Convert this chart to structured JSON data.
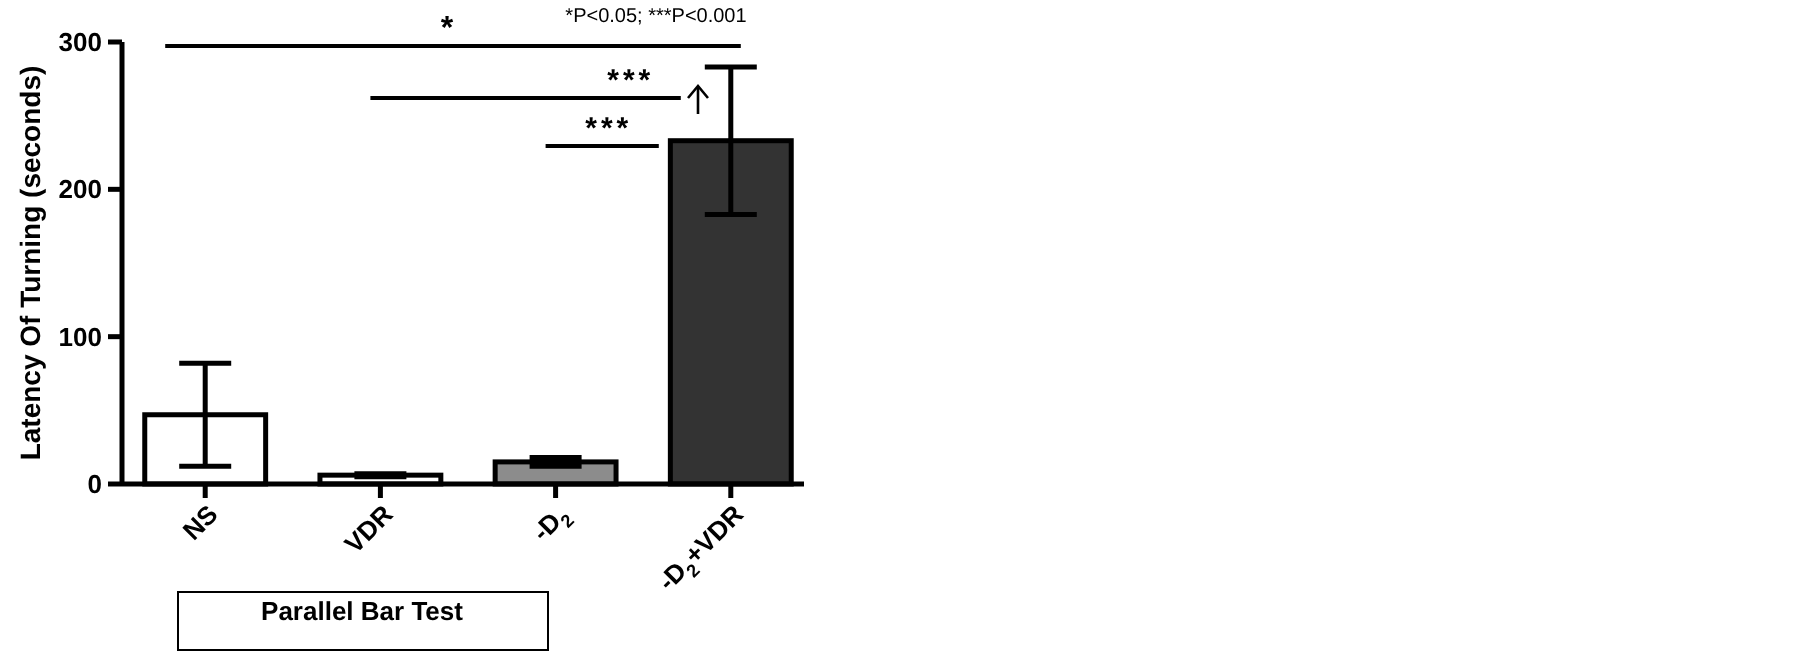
{
  "chart_data": {
    "type": "bar",
    "ylabel": "Latency Of Turning (seconds)",
    "categories": [
      "NS",
      "VDR",
      "-D$_{2}$",
      "-D$_{2}$+VDR"
    ],
    "values": [
      47,
      6,
      15,
      233
    ],
    "colors": [
      "#ffffff",
      "#ffffff",
      "#8c8c8c",
      "#333333"
    ],
    "errors": [
      35,
      1,
      3,
      50
    ],
    "ylim": [
      0,
      300
    ],
    "yticks": [
      0,
      100,
      200,
      300
    ],
    "grid": false,
    "annotations": [
      "*",
      "***",
      "***",
      "*P<0.05; ***P<0.001",
      "Parallel Bar Test"
    ]
  }
}
